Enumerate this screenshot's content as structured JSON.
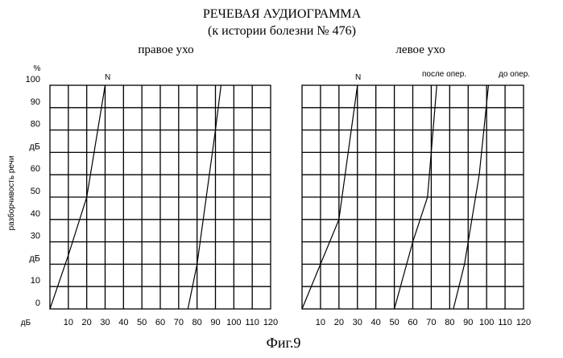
{
  "title": "РЕЧЕВАЯ АУДИОГРАММА",
  "subtitle": "(к истории болезни № 476)",
  "ylabel": "разборчивость речи",
  "y_unit": "%",
  "x_unit": "дБ",
  "y_ticks": [
    "100",
    "90",
    "80",
    "дБ",
    "60",
    "50",
    "40",
    "30",
    "дБ",
    "10",
    "0"
  ],
  "x_ticks": [
    "10",
    "20",
    "30",
    "40",
    "50",
    "60",
    "70",
    "80",
    "90",
    "100",
    "110",
    "120"
  ],
  "caption": "Фиг.9",
  "chart_data": [
    {
      "type": "line",
      "title": "правое ухо",
      "xlabel": "дБ",
      "ylabel": "разборчивость речи",
      "xlim": [
        0,
        120
      ],
      "ylim": [
        0,
        100
      ],
      "grid": true,
      "series": [
        {
          "name": "N",
          "points": [
            [
              0,
              0
            ],
            [
              10,
              24
            ],
            [
              20,
              50
            ],
            [
              30,
              100
            ]
          ]
        },
        {
          "name": "",
          "points": [
            [
              75,
              0
            ],
            [
              80,
              20
            ],
            [
              90,
              80
            ],
            [
              93,
              100
            ]
          ]
        }
      ]
    },
    {
      "type": "line",
      "title": "левое ухо",
      "xlabel": "дБ",
      "ylabel": "разборчивость речи",
      "xlim": [
        0,
        120
      ],
      "ylim": [
        0,
        100
      ],
      "grid": true,
      "series": [
        {
          "name": "N",
          "points": [
            [
              0,
              0
            ],
            [
              10,
              20
            ],
            [
              20,
              40
            ],
            [
              30,
              100
            ]
          ]
        },
        {
          "name": "после опер.",
          "points": [
            [
              50,
              0
            ],
            [
              60,
              30
            ],
            [
              68,
              50
            ],
            [
              73,
              100
            ]
          ]
        },
        {
          "name": "до опер.",
          "points": [
            [
              82,
              0
            ],
            [
              88,
              20
            ],
            [
              96,
              60
            ],
            [
              101,
              100
            ]
          ]
        }
      ]
    }
  ]
}
